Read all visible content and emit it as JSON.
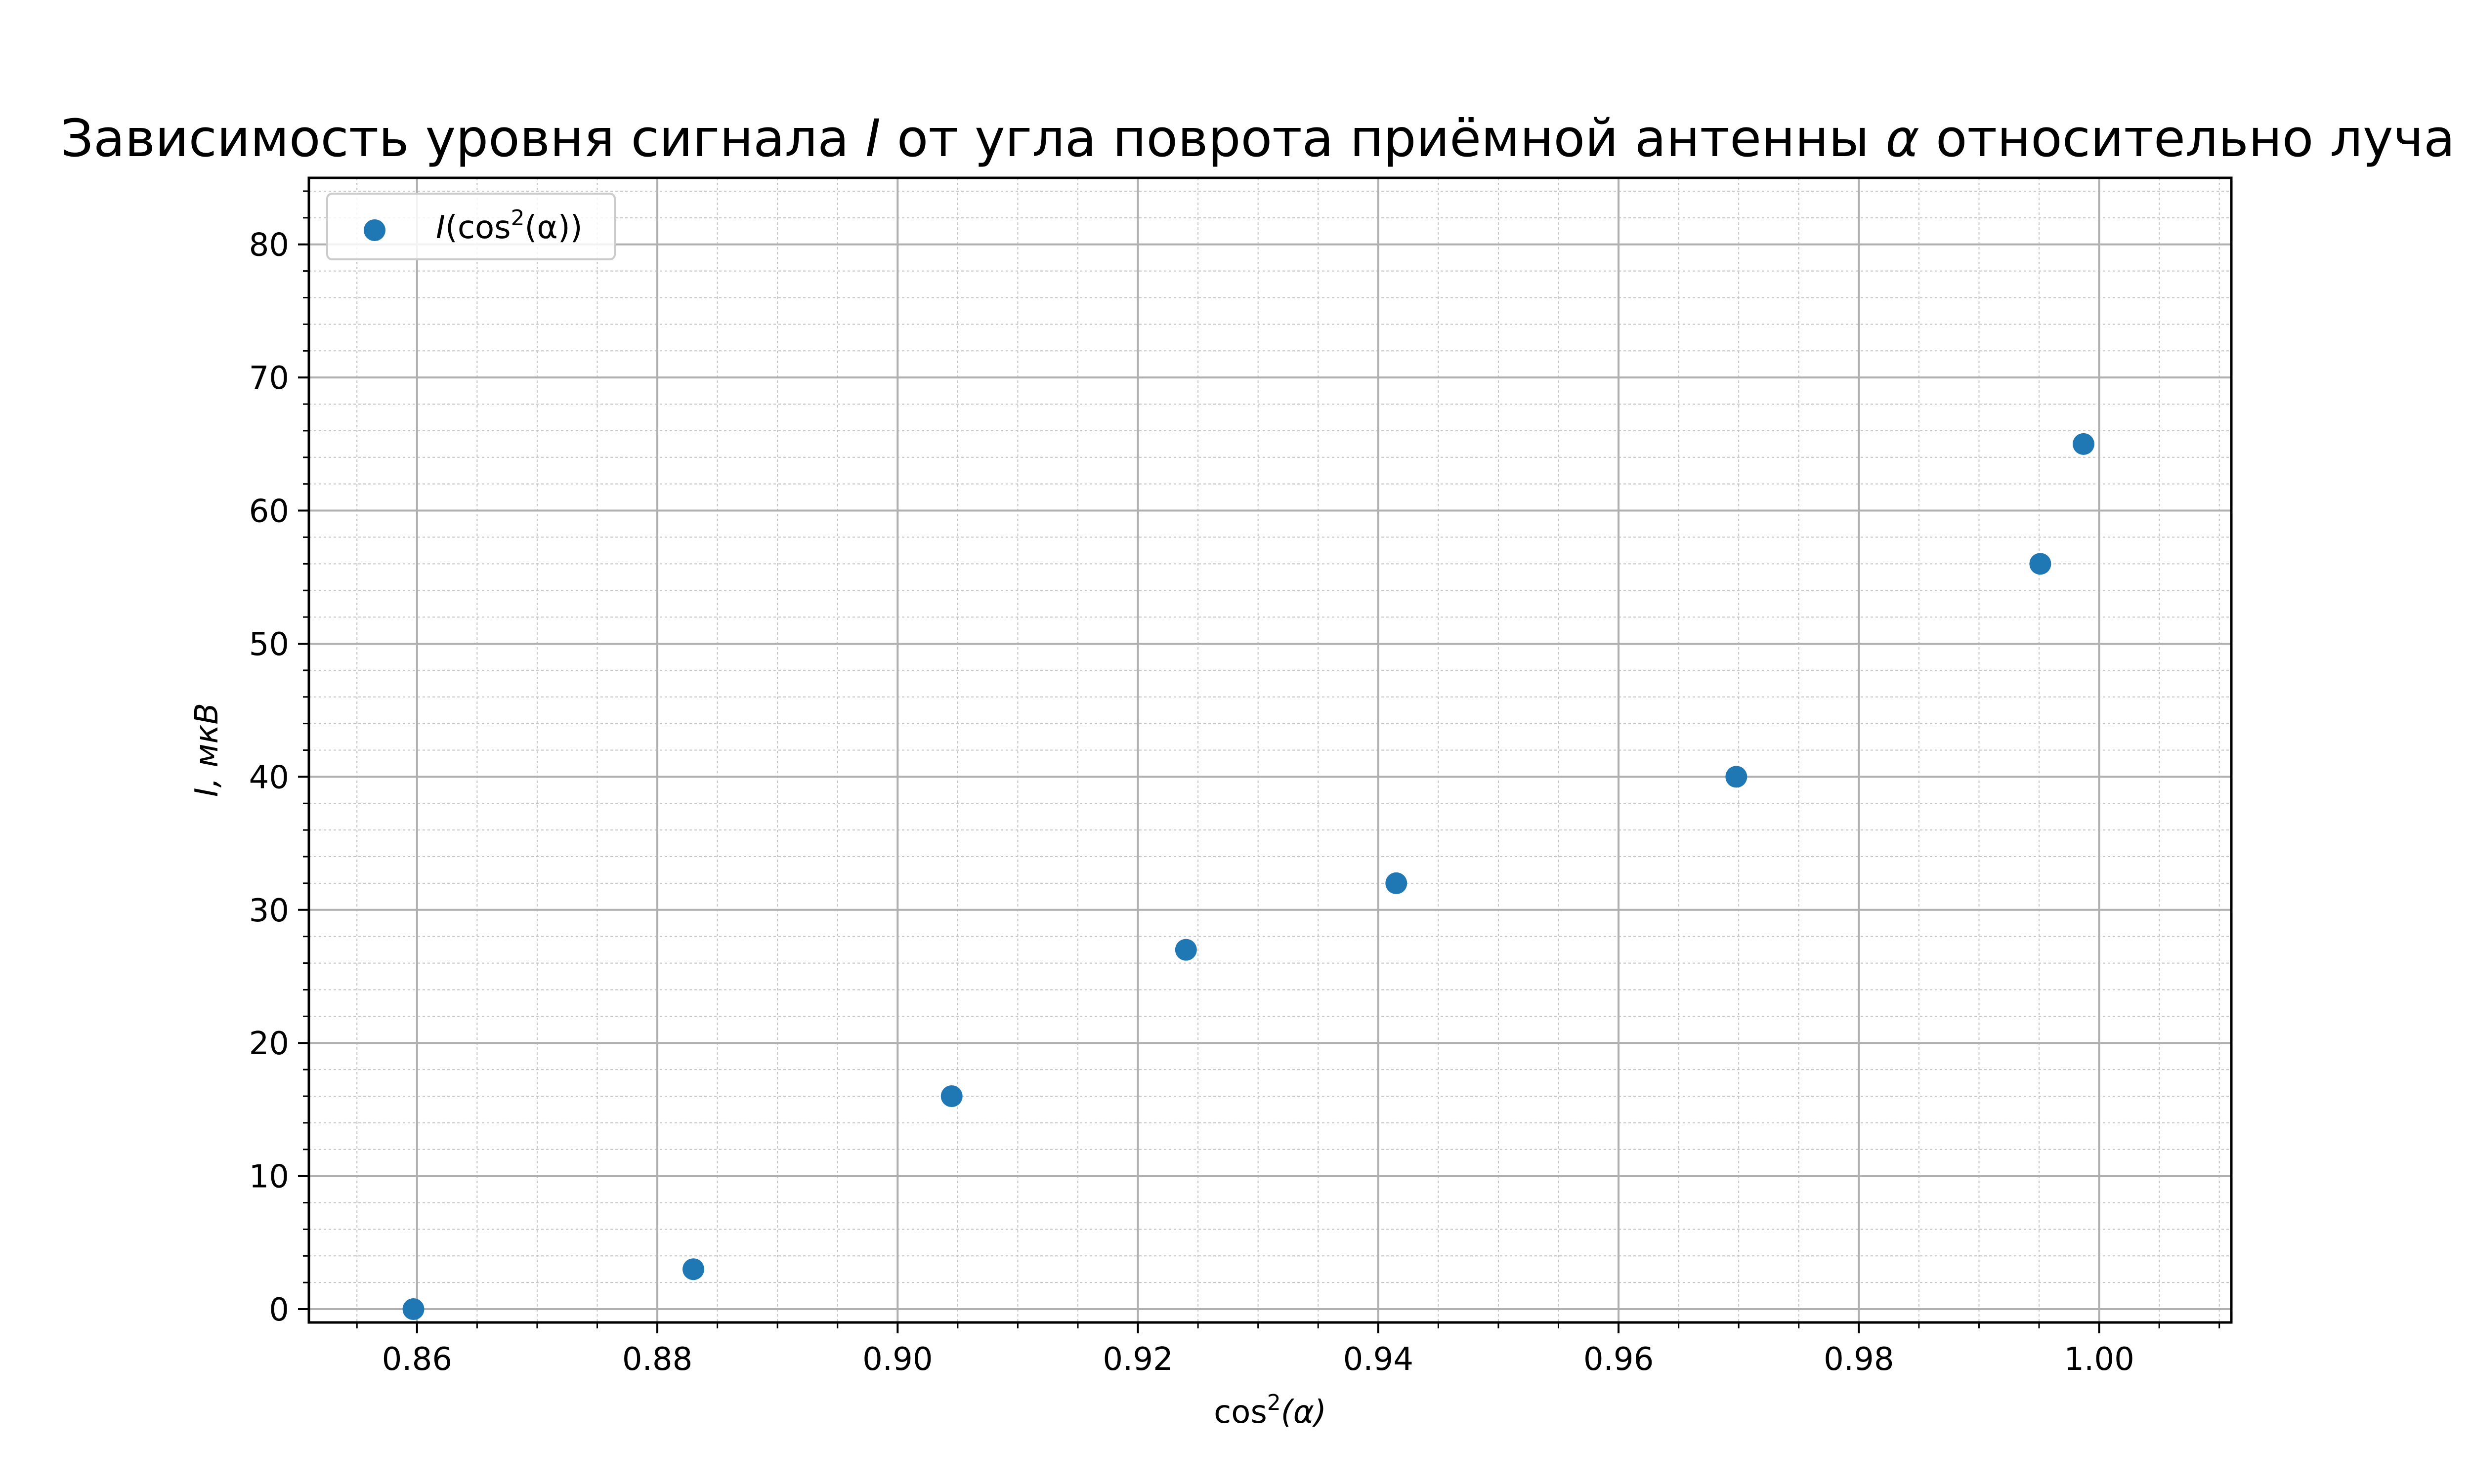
{
  "chart_data": {
    "type": "scatter",
    "title": {
      "main1": "Зависимость уровня сигнала ",
      "var1": "I",
      "main2": " от угла поврота приёмной антенны ",
      "var2": "α",
      "main3": " относительно луча"
    },
    "xlabel": {
      "pre": "cos",
      "sup": "2",
      "post": "(α)"
    },
    "ylabel": {
      "var": "I",
      "unit": ", мкВ"
    },
    "xlim": [
      0.851,
      1.011
    ],
    "ylim": [
      -1.0,
      85.0
    ],
    "xticks": [
      0.86,
      0.88,
      0.9,
      0.92,
      0.94,
      0.96,
      0.98,
      1.0
    ],
    "xtick_labels": [
      "0.86",
      "0.88",
      "0.90",
      "0.92",
      "0.94",
      "0.96",
      "0.98",
      "1.00"
    ],
    "yticks": [
      0,
      10,
      20,
      30,
      40,
      50,
      60,
      70,
      80
    ],
    "ytick_labels": [
      "0",
      "10",
      "20",
      "30",
      "40",
      "50",
      "60",
      "70",
      "80"
    ],
    "x_minor_step": 0.005,
    "y_minor_step": 2,
    "grid": {
      "major": true,
      "minor": true
    },
    "legend_position": "top-left",
    "series": [
      {
        "name": {
          "var": "I",
          "pre": "(cos",
          "sup": "2",
          "post": "(α))"
        },
        "color": "#1f77b4",
        "points": [
          {
            "x": 0.8597,
            "y": 0
          },
          {
            "x": 0.883,
            "y": 3
          },
          {
            "x": 0.9045,
            "y": 16
          },
          {
            "x": 0.924,
            "y": 27
          },
          {
            "x": 0.9415,
            "y": 32
          },
          {
            "x": 0.9698,
            "y": 40
          },
          {
            "x": 0.9951,
            "y": 56
          },
          {
            "x": 0.9987,
            "y": 65
          }
        ]
      }
    ]
  }
}
